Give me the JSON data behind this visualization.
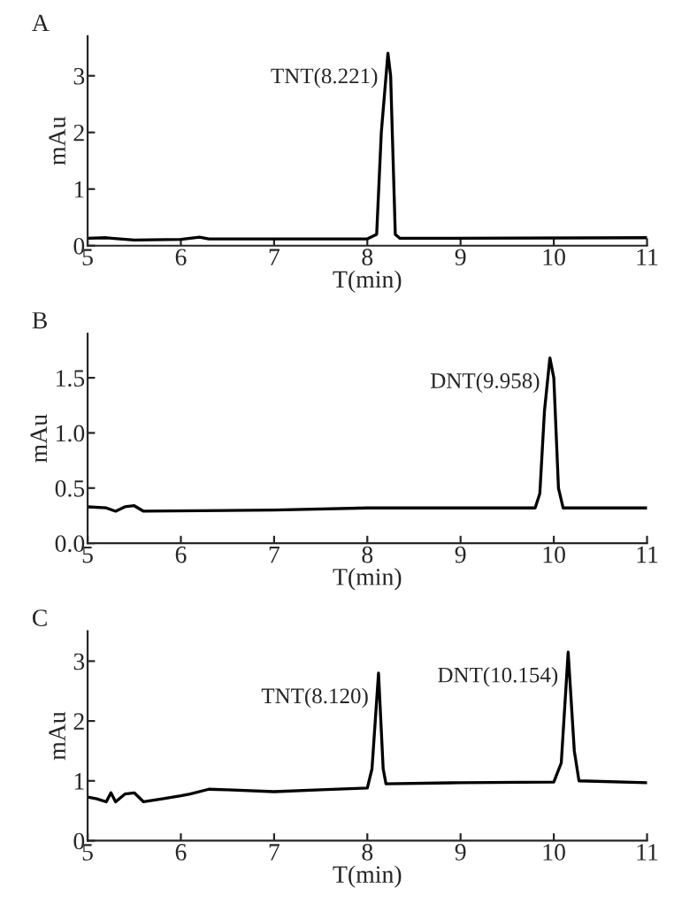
{
  "chart_data": [
    {
      "type": "line",
      "title": "A",
      "xlabel": "T(min)",
      "ylabel": "mAu",
      "xlim": [
        5,
        11
      ],
      "ylim": [
        0,
        3.7
      ],
      "xticks": [
        5,
        6,
        7,
        8,
        9,
        10,
        11
      ],
      "yticks": [
        0,
        1,
        2,
        3
      ],
      "grid": false,
      "legend": false,
      "series": [
        {
          "color": "#000000",
          "x": [
            5,
            5.2,
            5.5,
            6.0,
            6.2,
            6.3,
            8.0,
            8.1,
            8.15,
            8.221,
            8.25,
            8.3,
            8.35,
            11
          ],
          "values": [
            0.13,
            0.14,
            0.1,
            0.11,
            0.15,
            0.12,
            0.12,
            0.2,
            2.0,
            3.4,
            3.0,
            0.2,
            0.13,
            0.14
          ]
        }
      ],
      "annotations": [
        {
          "text": "TNT(8.221)",
          "x": 8.221,
          "y": 3.4
        }
      ]
    },
    {
      "type": "line",
      "title": "B",
      "xlabel": "T(min)",
      "ylabel": "mAu",
      "xlim": [
        5,
        11
      ],
      "ylim": [
        0,
        1.9
      ],
      "xticks": [
        5,
        6,
        7,
        8,
        9,
        10,
        11
      ],
      "yticks": [
        {
          "value": 0,
          "label": "0.0"
        },
        0.5,
        {
          "value": 1,
          "label": "1.0"
        },
        1.5
      ],
      "grid": false,
      "legend": false,
      "series": [
        {
          "color": "#000000",
          "x": [
            5,
            5.2,
            5.3,
            5.4,
            5.5,
            5.6,
            7,
            8,
            9.8,
            9.85,
            9.9,
            9.958,
            10.0,
            10.05,
            10.1,
            11
          ],
          "values": [
            0.33,
            0.32,
            0.29,
            0.33,
            0.34,
            0.29,
            0.3,
            0.32,
            0.32,
            0.45,
            1.2,
            1.68,
            1.5,
            0.5,
            0.32,
            0.32
          ]
        }
      ],
      "annotations": [
        {
          "text": "DNT(9.958)",
          "x": 9.958,
          "y": 1.68
        }
      ]
    },
    {
      "type": "line",
      "title": "C",
      "xlabel": "T(min)",
      "ylabel": "mAu",
      "xlim": [
        5,
        11
      ],
      "ylim": [
        0,
        3.5
      ],
      "xticks": [
        5,
        6,
        7,
        8,
        9,
        10,
        11
      ],
      "yticks": [
        0,
        1,
        2,
        3
      ],
      "grid": false,
      "legend": false,
      "series": [
        {
          "color": "#000000",
          "x": [
            5,
            5.1,
            5.2,
            5.25,
            5.3,
            5.4,
            5.5,
            5.6,
            5.8,
            6,
            6.1,
            6.3,
            6.5,
            7,
            7.5,
            8,
            8.05,
            8.12,
            8.17,
            8.2,
            9,
            10,
            10.08,
            10.154,
            10.22,
            10.27,
            11
          ],
          "values": [
            0.73,
            0.7,
            0.65,
            0.8,
            0.65,
            0.78,
            0.8,
            0.65,
            0.7,
            0.75,
            0.78,
            0.86,
            0.85,
            0.82,
            0.85,
            0.88,
            1.2,
            2.8,
            1.2,
            0.95,
            0.97,
            0.98,
            1.3,
            3.15,
            1.5,
            1.0,
            0.97
          ]
        }
      ],
      "annotations": [
        {
          "text": "TNT(8.120)",
          "x": 8.12,
          "y": 2.8
        },
        {
          "text": "DNT(10.154)",
          "x": 10.154,
          "y": 3.15
        }
      ]
    }
  ]
}
